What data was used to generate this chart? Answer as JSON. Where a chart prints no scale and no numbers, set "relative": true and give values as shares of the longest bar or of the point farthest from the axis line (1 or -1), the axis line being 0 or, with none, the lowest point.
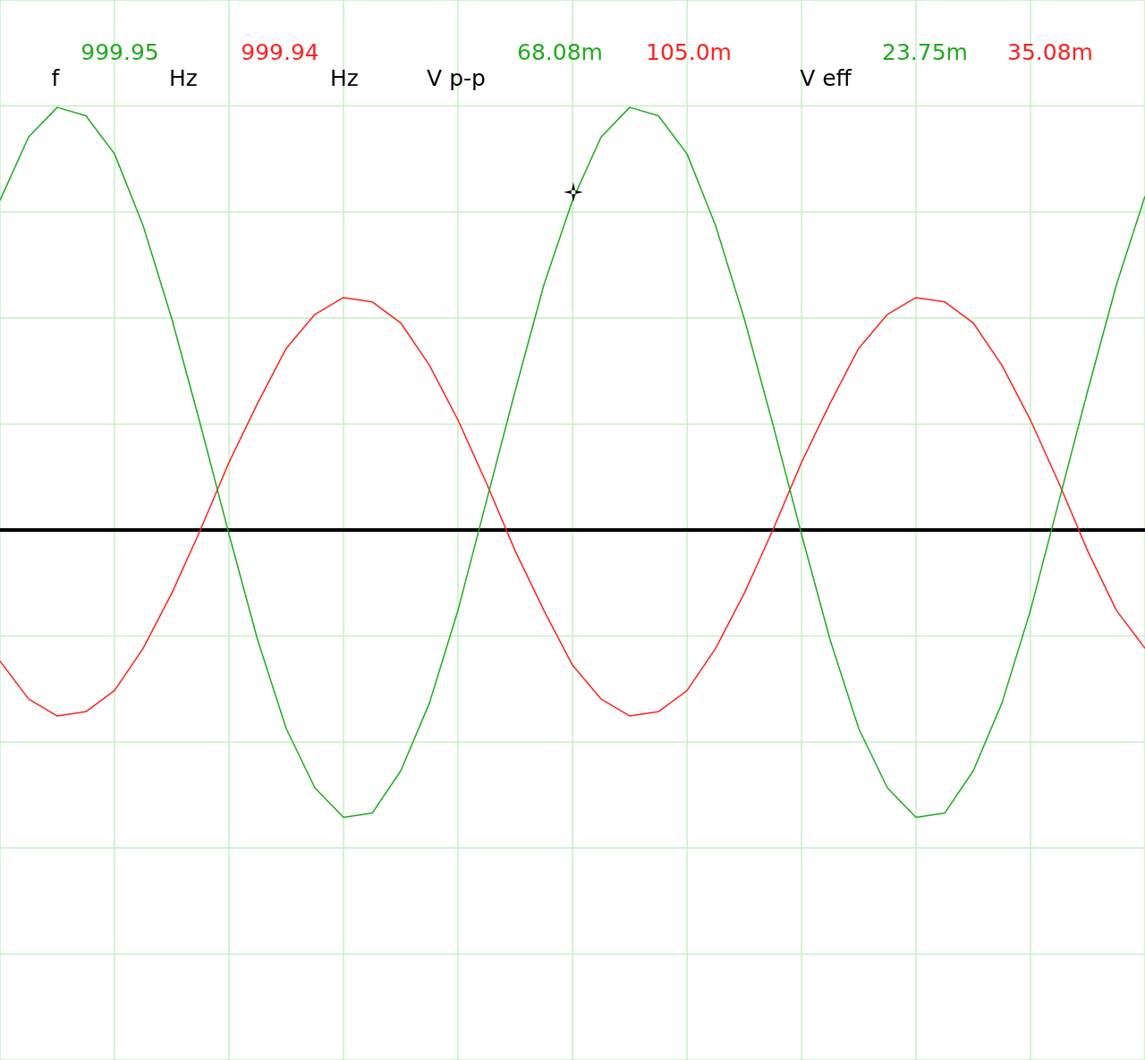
{
  "chart_data": {
    "type": "line",
    "relative": true,
    "grid": true,
    "legend": false,
    "marker": "none",
    "line_style": "solid",
    "categories": [
      null,
      null,
      null,
      null,
      null,
      null,
      null,
      null,
      null,
      null,
      null,
      null,
      null,
      null,
      null,
      null,
      null,
      null,
      null,
      null,
      null,
      null,
      null,
      null,
      null,
      null,
      null,
      null,
      null,
      null,
      null,
      null,
      null,
      null,
      null,
      null,
      null,
      null,
      null,
      null,
      null
    ],
    "series": [
      {
        "color": "#1faa1f",
        "values": [
          0.78,
          0.93,
          1.0,
          0.98,
          0.89,
          0.72,
          0.5,
          0.25,
          -0.01,
          -0.26,
          -0.47,
          -0.61,
          -0.68,
          -0.67,
          -0.57,
          -0.41,
          -0.19,
          0.07,
          0.33,
          0.58,
          0.78,
          0.93,
          1.0,
          0.98,
          0.89,
          0.72,
          0.5,
          0.25,
          -0.01,
          -0.26,
          -0.47,
          -0.61,
          -0.68,
          -0.67,
          -0.57,
          -0.41,
          -0.19,
          0.07,
          0.33,
          0.58,
          0.79
        ]
      },
      {
        "color": "#ff2020",
        "values": [
          -0.31,
          -0.4,
          -0.44,
          -0.43,
          -0.38,
          -0.28,
          -0.15,
          0.0,
          0.16,
          0.3,
          0.43,
          0.51,
          0.55,
          0.54,
          0.49,
          0.39,
          0.26,
          0.11,
          -0.05,
          -0.19,
          -0.32,
          -0.4,
          -0.44,
          -0.43,
          -0.38,
          -0.28,
          -0.15,
          0.0,
          0.16,
          0.3,
          0.43,
          0.51,
          0.55,
          0.54,
          0.49,
          0.39,
          0.26,
          0.11,
          -0.05,
          -0.19,
          -0.28
        ]
      }
    ],
    "annotations": [
      "f",
      "999.95",
      "Hz",
      "999.94",
      "Hz",
      "V p-p",
      "68.08m",
      "105.0m",
      "V eff",
      "23.75m",
      "35.08m"
    ]
  }
}
